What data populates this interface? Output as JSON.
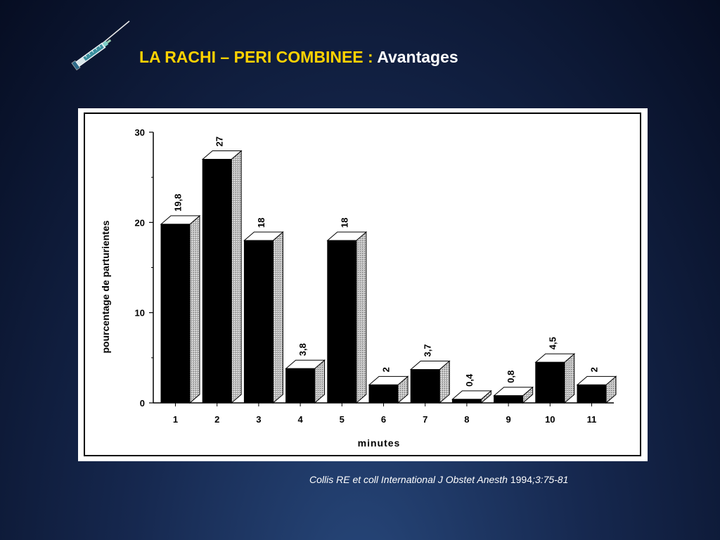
{
  "slide": {
    "title_main": "LA RACHI – PERI COMBINEE :",
    "title_sub": "Avantages",
    "citation_main": "Collis RE et coll International J Obstet Anesth",
    "citation_year": "1994",
    "citation_ref": ";3:75-81",
    "icon": "syringe-icon"
  },
  "colors": {
    "title_main": "#ffd200",
    "title_sub": "#ffffff",
    "bar_front": "#000000",
    "bar_top": "#ffffff",
    "bar_side": "#bdbdbd"
  },
  "chart_data": {
    "type": "bar",
    "style": "3d",
    "categories": [
      "1",
      "2",
      "3",
      "4",
      "5",
      "6",
      "7",
      "8",
      "9",
      "10",
      "11"
    ],
    "values": [
      19.8,
      27,
      18,
      3.8,
      18,
      2,
      3.7,
      0.4,
      0.8,
      4.5,
      2
    ],
    "value_labels": [
      "19,8",
      "27",
      "18",
      "3,8",
      "18",
      "2",
      "3,7",
      "0,4",
      "0,8",
      "4,5",
      "2"
    ],
    "xlabel": "minutes",
    "ylabel": "pourcentage de parturientes",
    "ylim": [
      0,
      30
    ],
    "yticks": [
      0,
      10,
      20,
      30
    ],
    "grid": false,
    "legend": "none"
  }
}
